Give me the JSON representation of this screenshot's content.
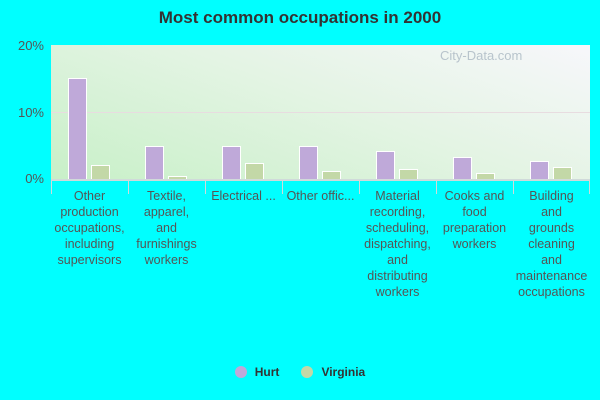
{
  "title": "Most common occupations in 2000",
  "watermark": "City-Data.com",
  "colors": {
    "hurt": "#bfa9d9",
    "virginia": "#c3d8a7",
    "background": "#00ffff"
  },
  "yticks": [
    "20%",
    "10%",
    "0%"
  ],
  "legend": [
    {
      "label": "Hurt",
      "color": "#bfa9d9"
    },
    {
      "label": "Virginia",
      "color": "#c3d8a7"
    }
  ],
  "categories": [
    "Other\nproduction\noccupations,\nincluding\nsupervisors",
    "Textile,\napparel,\nand\nfurnishings\nworkers",
    "Electrical ...",
    "Other offic...",
    "Material\nrecording,\nscheduling,\ndispatching,\nand\ndistributing\nworkers",
    "Cooks and\nfood\npreparation\nworkers",
    "Building\nand\ngrounds\ncleaning\nand\nmaintenance\noccupations"
  ],
  "chart_data": {
    "type": "bar",
    "title": "Most common occupations in 2000",
    "categories": [
      "Other production occupations, including supervisors",
      "Textile, apparel, and furnishings workers",
      "Electrical ...",
      "Other offic...",
      "Material recording, scheduling, dispatching, and distributing workers",
      "Cooks and food preparation workers",
      "Building and grounds cleaning and maintenance occupations"
    ],
    "series": [
      {
        "name": "Hurt",
        "values": [
          15.0,
          4.8,
          4.8,
          4.8,
          4.0,
          3.2,
          2.6
        ]
      },
      {
        "name": "Virginia",
        "values": [
          2.0,
          0.3,
          2.2,
          1.0,
          1.3,
          0.7,
          1.6
        ]
      }
    ],
    "xlabel": "",
    "ylabel": "",
    "yticks": [
      "0%",
      "10%",
      "20%"
    ],
    "ylim": [
      0,
      20
    ],
    "grid": true,
    "legend_position": "bottom"
  }
}
